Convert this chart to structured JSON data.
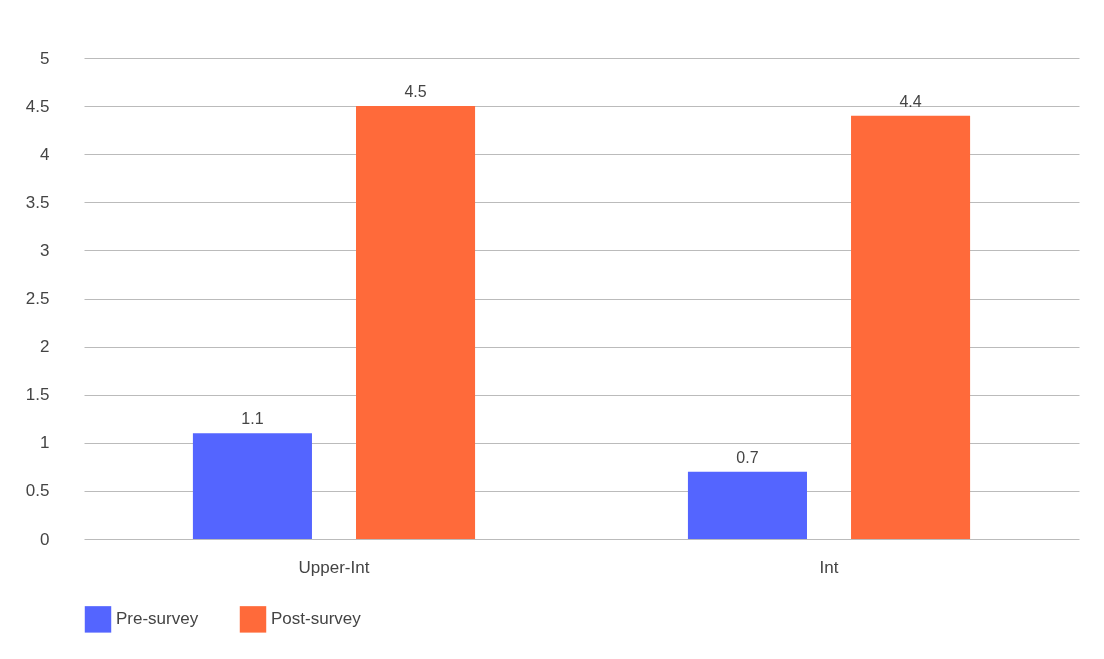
{
  "chart_data": {
    "type": "bar",
    "categories": [
      "Upper-Int",
      "Int"
    ],
    "series": [
      {
        "name": "Pre-survey",
        "color": "#5465ff",
        "values": [
          1.1,
          0.7
        ]
      },
      {
        "name": "Post-survey",
        "color": "#ff6a3a",
        "values": [
          4.5,
          4.4
        ]
      }
    ],
    "ylim": [
      0,
      5
    ],
    "yticks": [
      0,
      0.5,
      1,
      1.5,
      2,
      2.5,
      3,
      3.5,
      4,
      4.5,
      5
    ],
    "grid": "y",
    "legend": "bottom",
    "data_labels": true
  }
}
